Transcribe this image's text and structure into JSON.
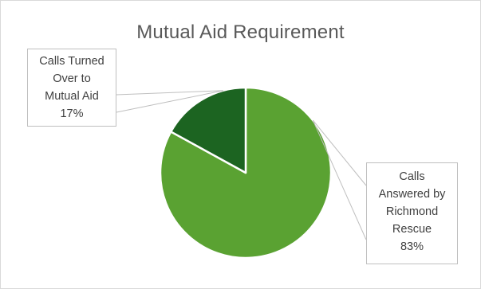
{
  "chart_data": {
    "type": "pie",
    "title": "Mutual Aid Requirement",
    "slices": [
      {
        "name_lines": [
          "Calls",
          "Answered by",
          "Richmond",
          "Rescue"
        ],
        "value": 83,
        "label": "83%",
        "color": "#5aa232"
      },
      {
        "name_lines": [
          "Calls Turned",
          "Over to",
          "Mutual Aid"
        ],
        "value": 17,
        "label": "17%",
        "color": "#1c6421"
      }
    ],
    "legend": "none",
    "slice_border_color": "#ffffff"
  }
}
